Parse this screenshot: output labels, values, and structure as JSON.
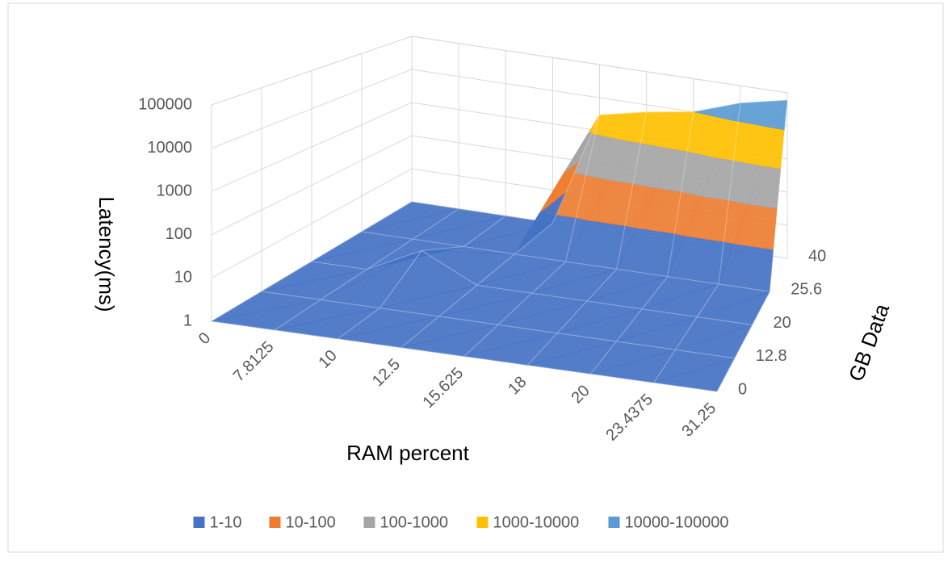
{
  "chart_data": {
    "type": "surface",
    "x_label": "RAM percent",
    "y_label": "Latency(ms)",
    "depth_label": "GB Data",
    "categories": [
      "0",
      "7.8125",
      "10",
      "12.5",
      "15.625",
      "18",
      "20",
      "23.4375",
      "31.25"
    ],
    "series": [
      {
        "name": "0",
        "values": [
          1,
          1,
          1,
          1,
          1,
          1,
          1,
          1,
          1
        ]
      },
      {
        "name": "12.8",
        "values": [
          1,
          1,
          1,
          1,
          1,
          1,
          1,
          1,
          1
        ]
      },
      {
        "name": "20",
        "values": [
          1,
          1,
          5,
          1,
          1,
          1,
          1,
          1,
          1
        ]
      },
      {
        "name": "25.6",
        "values": [
          1,
          1,
          1,
          1,
          1,
          1,
          1,
          1,
          1
        ]
      },
      {
        "name": "40",
        "values": [
          1,
          1,
          1,
          1,
          3000,
          6000,
          10000,
          30000,
          60000
        ]
      }
    ],
    "bands": [
      {
        "name": "1-10",
        "color": "#4472c4"
      },
      {
        "name": "10-100",
        "color": "#ed7d31"
      },
      {
        "name": "100-1000",
        "color": "#a5a5a5"
      },
      {
        "name": "1000-10000",
        "color": "#ffc000"
      },
      {
        "name": "10000-100000",
        "color": "#5b9bd5"
      }
    ],
    "log_scale": true,
    "ylim": [
      1,
      100000
    ],
    "yticks": [
      1,
      10,
      100,
      1000,
      10000,
      100000
    ],
    "grid": true
  }
}
